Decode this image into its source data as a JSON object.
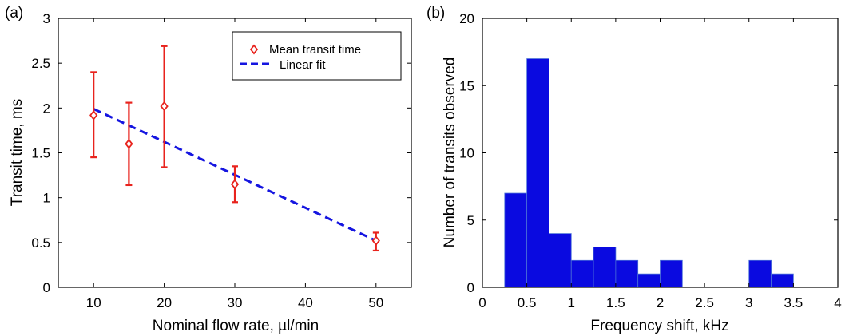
{
  "chart_data": [
    {
      "type": "scatter",
      "panel_label": "(a)",
      "xlabel": "Nominal flow rate, µl/min",
      "ylabel": "Transit time, ms",
      "xlim": [
        5,
        55
      ],
      "ylim": [
        0,
        3
      ],
      "xticks": [
        10,
        20,
        30,
        40,
        50
      ],
      "yticks": [
        0,
        0.5,
        1,
        1.5,
        2,
        2.5,
        3
      ],
      "grid": false,
      "legend_position": "top-right",
      "series": [
        {
          "name": "Mean transit time",
          "style": "diamond markers with error bars",
          "color": "#e8231d",
          "points": [
            {
              "x": 10,
              "y": 1.92,
              "ylow": 1.45,
              "yhigh": 2.4
            },
            {
              "x": 15,
              "y": 1.6,
              "ylow": 1.14,
              "yhigh": 2.06
            },
            {
              "x": 20,
              "y": 2.02,
              "ylow": 1.34,
              "yhigh": 2.69
            },
            {
              "x": 30,
              "y": 1.15,
              "ylow": 0.95,
              "yhigh": 1.35
            },
            {
              "x": 50,
              "y": 0.52,
              "ylow": 0.41,
              "yhigh": 0.61
            }
          ]
        },
        {
          "name": "Linear fit",
          "style": "dashed line",
          "color": "#1515e0",
          "x": [
            10,
            50
          ],
          "y": [
            1.99,
            0.52
          ]
        }
      ]
    },
    {
      "type": "bar",
      "subtype": "histogram",
      "panel_label": "(b)",
      "xlabel": "Frequency shift, kHz",
      "ylabel": "Number of transits observed",
      "xlim": [
        0,
        4
      ],
      "ylim": [
        0,
        20
      ],
      "xticks": [
        0,
        0.5,
        1,
        1.5,
        2,
        2.5,
        3,
        3.5,
        4
      ],
      "yticks": [
        0,
        5,
        10,
        15,
        20
      ],
      "grid": false,
      "bar_color": "#0a0ae0",
      "bin_width": 0.25,
      "bin_starts": [
        0.25,
        0.5,
        0.75,
        1.0,
        1.25,
        1.5,
        1.75,
        2.0,
        2.25,
        2.5,
        2.75,
        3.0,
        3.25
      ],
      "values": [
        7,
        17,
        4,
        2,
        3,
        2,
        1,
        2,
        0,
        0,
        0,
        2,
        1
      ]
    }
  ]
}
